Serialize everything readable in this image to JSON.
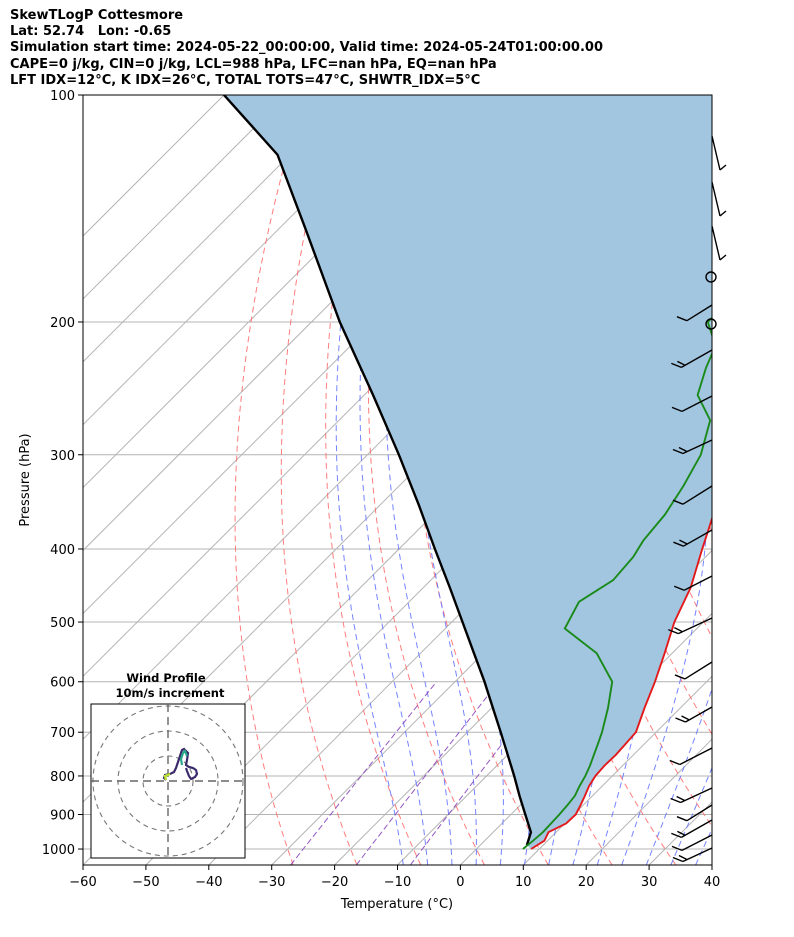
{
  "header": {
    "lines": [
      "SkewTLogP Cottesmore",
      "Lat: 52.74   Lon: -0.65",
      "Simulation start time: 2024-05-22_00:00:00, Valid time: 2024-05-24T01:00:00.00",
      "CAPE=0 j/kg, CIN=0 j/kg, LCL=988 hPa, LFC=nan hPa, EQ=nan hPa",
      "LFT IDX=12°C, K IDX=26°C, TOTAL TOTS=47°C, SHWTR_IDX=5°C"
    ]
  },
  "chart_data": {
    "type": "line",
    "title": "SkewTLogP Cottesmore",
    "xlabel": "Temperature (°C)",
    "ylabel": "Pressure (hPa)",
    "xlim": [
      -60,
      40
    ],
    "ylim": [
      1050,
      100
    ],
    "y_scale": "log",
    "x_ticks": [
      "−60",
      "−50",
      "−40",
      "−30",
      "−20",
      "−10",
      "0",
      "10",
      "20",
      "30",
      "40"
    ],
    "x_tick_values": [
      -60,
      -50,
      -40,
      -30,
      -20,
      -10,
      0,
      10,
      20,
      30,
      40
    ],
    "y_ticks": [
      "1000",
      "900",
      "800",
      "700",
      "600",
      "500",
      "400",
      "300",
      "200",
      "100"
    ],
    "y_tick_values": [
      1000,
      900,
      800,
      700,
      600,
      500,
      400,
      300,
      200,
      100
    ],
    "grid": true,
    "colors": {
      "temperature": "#e31a1c",
      "dewpoint": "#1a8a1a",
      "parcel": "#000000",
      "fill": "#a3c6e0",
      "dry_adiabat": "#ff6666",
      "moist_adiabat": "#6677ff",
      "mixing_ratio": "#8844bb"
    },
    "series": [
      {
        "id": "temperature",
        "points": [
          [
            8.7,
            1000
          ],
          [
            9.5,
            975
          ],
          [
            8.8,
            950
          ],
          [
            10.2,
            925
          ],
          [
            10.3,
            900
          ],
          [
            9.6,
            875
          ],
          [
            8.8,
            850
          ],
          [
            7.9,
            825
          ],
          [
            7.3,
            800
          ],
          [
            7.1,
            775
          ],
          [
            7.2,
            750
          ],
          [
            7.0,
            725
          ],
          [
            6.8,
            700
          ],
          [
            4.3,
            650
          ],
          [
            1.8,
            600
          ],
          [
            -1.2,
            550
          ],
          [
            -4.6,
            500
          ],
          [
            -7.5,
            450
          ],
          [
            -11.8,
            400
          ],
          [
            -16.5,
            350
          ],
          [
            -21.0,
            300
          ],
          [
            -22.5,
            280
          ],
          [
            -23.0,
            265
          ],
          [
            -20.0,
            240
          ],
          [
            -16.0,
            220
          ],
          [
            -12.0,
            200
          ],
          [
            -9.5,
            180
          ],
          [
            -7.5,
            160
          ],
          [
            -7.0,
            140
          ],
          [
            -6.0,
            120
          ],
          [
            -6.3,
            100
          ]
        ]
      },
      {
        "id": "dewpoint",
        "points": [
          [
            7.4,
            1000
          ],
          [
            7.7,
            975
          ],
          [
            7.9,
            950
          ],
          [
            7.8,
            925
          ],
          [
            7.7,
            900
          ],
          [
            7.5,
            875
          ],
          [
            7.2,
            850
          ],
          [
            6.4,
            825
          ],
          [
            5.7,
            800
          ],
          [
            4.8,
            775
          ],
          [
            3.7,
            750
          ],
          [
            2.6,
            725
          ],
          [
            1.4,
            700
          ],
          [
            -1.5,
            650
          ],
          [
            -5.0,
            600
          ],
          [
            -12.0,
            550
          ],
          [
            -21.0,
            510
          ],
          [
            -23.0,
            470
          ],
          [
            -21.0,
            440
          ],
          [
            -21.5,
            410
          ],
          [
            -22.5,
            390
          ],
          [
            -23.2,
            360
          ],
          [
            -24.8,
            330
          ],
          [
            -27.0,
            300
          ],
          [
            -31.0,
            270
          ],
          [
            -37.0,
            250
          ],
          [
            -40.0,
            230
          ],
          [
            -42.0,
            215
          ],
          [
            -47.0,
            200
          ],
          [
            -47.0,
            180
          ],
          [
            -48.0,
            165
          ],
          [
            -47.5,
            150
          ],
          [
            -44.5,
            130
          ],
          [
            -41.0,
            115
          ],
          [
            -38.0,
            100
          ]
        ]
      },
      {
        "id": "parcel",
        "points": [
          [
            7.4,
            988
          ],
          [
            6.0,
            950
          ],
          [
            2.3,
            900
          ],
          [
            -1.6,
            850
          ],
          [
            -5.6,
            800
          ],
          [
            -10.0,
            750
          ],
          [
            -14.7,
            700
          ],
          [
            -19.8,
            650
          ],
          [
            -25.3,
            600
          ],
          [
            -31.5,
            550
          ],
          [
            -38.3,
            500
          ],
          [
            -45.8,
            450
          ],
          [
            -54.3,
            400
          ],
          [
            -63.8,
            350
          ],
          [
            -75.0,
            300
          ],
          [
            -88.6,
            250
          ],
          [
            -105.5,
            200
          ],
          [
            -126.0,
            150
          ],
          [
            -142.0,
            120
          ],
          [
            -160.0,
            100
          ]
        ]
      }
    ],
    "wind_profile_inset": {
      "title": "Wind Profile",
      "subtitle": "10m/s increment",
      "rings_ms": [
        10,
        20,
        30
      ]
    }
  }
}
